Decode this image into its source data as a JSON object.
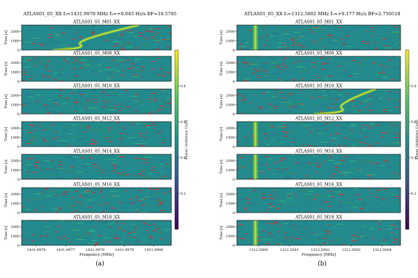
{
  "chart_data": [
    {
      "type": "heatmap",
      "title": "ATLAS01_05_XX f₀=1431.9978 MHz ḟ₀=+0.045 Hz/s BF=10.5785",
      "caption": "(a)",
      "xlabel": "Frequency [MHz]",
      "xticks": [
        "1431.9976",
        "1431.9977",
        "1431.9978",
        "1431.9979",
        "1431.9980"
      ],
      "xlim": [
        1431.99755,
        1431.99806
      ],
      "ylabel": "Time [s]",
      "yticks": [
        0,
        1000,
        2000
      ],
      "ylim": [
        0,
        2700
      ],
      "colorbar": {
        "label": "Power (Arbitrary Unit)",
        "ticks": [
          0.2,
          0.4,
          0.6,
          0.8
        ],
        "range": [
          0.0,
          1.0
        ]
      },
      "panels": [
        {
          "name": "ATLAS01_05_M01_XX",
          "signal": {
            "kind": "drift",
            "f_start": 1431.99775,
            "f_end": 1431.99795
          }
        },
        {
          "name": "ATLAS01_05_M08_XX",
          "signal": null
        },
        {
          "name": "ATLAS01_05_M10_XX",
          "signal": null
        },
        {
          "name": "ATLAS01_05_M12_XX",
          "signal": null
        },
        {
          "name": "ATLAS01_05_M14_XX",
          "signal": null
        },
        {
          "name": "ATLAS01_05_M16_XX",
          "signal": null
        },
        {
          "name": "ATLAS01_05_M18_XX",
          "signal": null
        }
      ]
    },
    {
      "type": "heatmap",
      "title": "ATLAS01_05_XX f₀=1312.5002 MHz ḟ₀=+0.177 Hz/s BF=2.750518",
      "caption": "(b)",
      "xlabel": "Frequency [MHz]",
      "xticks": [
        "1312.5000",
        "1312.5001",
        "1312.5002",
        "1312.5003",
        "1312.5004"
      ],
      "xlim": [
        1312.49993,
        1312.50046
      ],
      "ylabel": "Time [s]",
      "yticks": [
        0,
        1000,
        2000
      ],
      "ylim": [
        0,
        2700
      ],
      "colorbar": {
        "label": "Power (Arbitrary Unit)",
        "ticks": [
          0.2,
          0.4,
          0.6,
          0.8
        ],
        "range": [
          0.0,
          1.0
        ]
      },
      "panels": [
        {
          "name": "ATLAS01_05_M01_XX",
          "signal": {
            "kind": "vertical",
            "f": 1312.49999
          }
        },
        {
          "name": "ATLAS01_05_M08_XX",
          "signal": null
        },
        {
          "name": "ATLAS01_05_M10_XX",
          "signal": {
            "kind": "drift",
            "f_start": 1312.50027,
            "f_end": 1312.50038
          }
        },
        {
          "name": "ATLAS01_05_M12_XX",
          "signal": {
            "kind": "vertical",
            "f": 1312.49999
          }
        },
        {
          "name": "ATLAS01_05_M14_XX",
          "signal": {
            "kind": "vertical",
            "f": 1312.49999
          }
        },
        {
          "name": "ATLAS01_05_M16_XX",
          "signal": null
        },
        {
          "name": "ATLAS01_05_M18_XX",
          "signal": {
            "kind": "vertical",
            "f": 1312.49999
          }
        }
      ]
    }
  ]
}
